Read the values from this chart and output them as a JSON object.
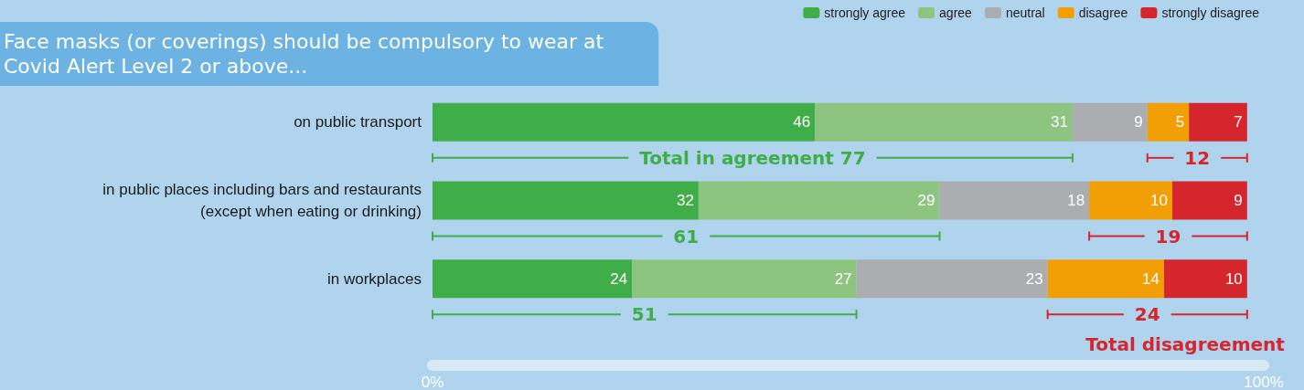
{
  "chart_data": {
    "type": "bar",
    "orientation": "horizontal",
    "stacked": true,
    "title": "Face masks (or coverings) should be compulsory to wear at\nCovid Alert Level 2 or above...",
    "categories": [
      "on public transport",
      "in public places including bars and restaurants\n(except when eating or drinking)",
      "in workplaces"
    ],
    "series": [
      {
        "name": "strongly agree",
        "color": "#3fae49",
        "values": [
          46,
          32,
          24
        ]
      },
      {
        "name": "agree",
        "color": "#8dc47f",
        "values": [
          31,
          29,
          27
        ]
      },
      {
        "name": "neutral",
        "color": "#abadb1",
        "values": [
          9,
          18,
          23
        ]
      },
      {
        "name": "disagree",
        "color": "#f29f05",
        "values": [
          5,
          10,
          14
        ]
      },
      {
        "name": "strongly disagree",
        "color": "#d6262d",
        "values": [
          7,
          9,
          10
        ]
      }
    ],
    "data_labels": true,
    "xlim": [
      0,
      100
    ],
    "xticks": [
      {
        "value": 0,
        "label": "0%"
      },
      {
        "value": 100,
        "label": "100%"
      }
    ],
    "grid": false,
    "legend": "top right",
    "annotations": [
      "Total in agreement 77",
      "12",
      "61",
      "19",
      "51",
      "24",
      "Total disagreement"
    ]
  }
}
